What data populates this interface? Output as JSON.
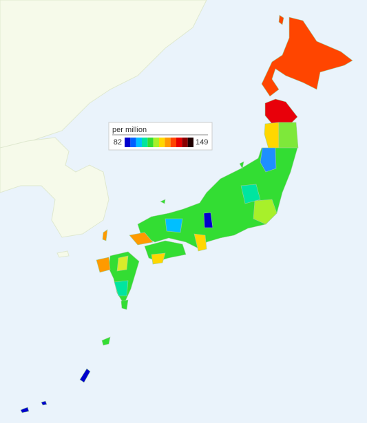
{
  "legend": {
    "title": "per million",
    "min": 82,
    "max": 149,
    "colors": [
      "#0000cd",
      "#0060ff",
      "#00bfff",
      "#00e5a0",
      "#33dd33",
      "#a8f02a",
      "#ffd700",
      "#ff9a00",
      "#ff4500",
      "#e60000",
      "#8b0000",
      "#200000"
    ]
  }
}
